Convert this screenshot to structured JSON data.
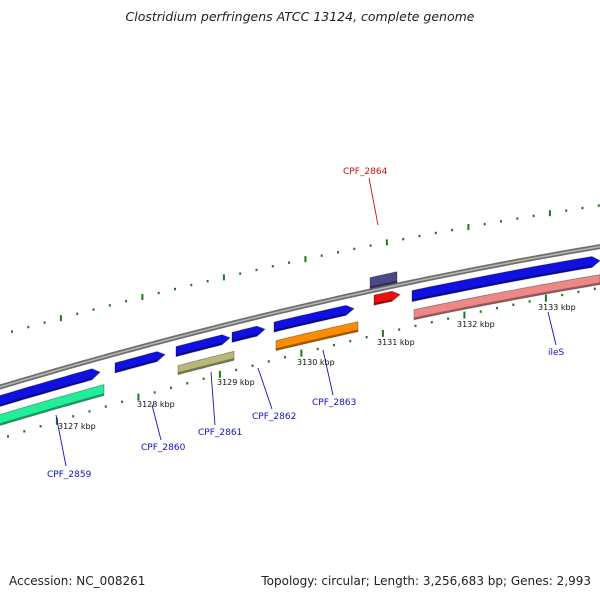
{
  "title": "Clostridium perfringens ATCC 13124, complete genome",
  "footer": {
    "accession_label": "Accession:",
    "accession": "NC_008261",
    "topology_text": "Topology: circular; Length: 3,256,683 bp; Genes: 2,993"
  },
  "colors": {
    "backbone": "#8a8a8a",
    "tick": "#1b7a1b",
    "label_blue": "#1010c8",
    "label_red": "#d01010",
    "cds_forward": "#1010e0",
    "cds_dark": "#4a4a8a",
    "cds_red": "#ee1010",
    "cds_green": "#22ee99",
    "cds_olive": "#b8b87a",
    "cds_orange": "#ff8c00",
    "cds_pink": "#ee8888"
  },
  "ticks": {
    "unit": "kbp",
    "labeled_positions_kbp": [
      3127,
      3128,
      3129,
      3130,
      3131,
      3132,
      3133
    ],
    "labels": [
      "3127 kbp",
      "3128 kbp",
      "3129 kbp",
      "3130 kbp",
      "3131 kbp",
      "3132 kbp",
      "3133 kbp"
    ]
  },
  "features": [
    {
      "name": "CPF_2859",
      "label": "CPF_2859",
      "strand": "+",
      "color": "cds_green",
      "start_kbp": 3126.45,
      "end_kbp": 3127.3
    },
    {
      "name": "CPF_2860",
      "label": "CPF_2860",
      "strand": "+",
      "color": "cds_forward",
      "start_kbp": 3127.55,
      "end_kbp": 3128.07
    },
    {
      "name": "CPF_2861",
      "label": "CPF_2861",
      "strand": "+",
      "color": "cds_forward",
      "start_kbp": 3128.2,
      "end_kbp": 3128.78
    },
    {
      "name": "CPF_2862",
      "label": "CPF_2862",
      "strand": "+",
      "color": "cds_forward",
      "start_kbp": 3128.85,
      "end_kbp": 3129.22
    },
    {
      "name": "CPF_2863",
      "label": "CPF_2863",
      "strand": "+",
      "color": "cds_forward",
      "start_kbp": 3129.32,
      "end_kbp": 3130.15
    },
    {
      "name": "CPF_2864",
      "label": "CPF_2864",
      "strand": "+",
      "color": "cds_red",
      "start_kbp": 3130.55,
      "end_kbp": 3130.88
    },
    {
      "name": "ileS",
      "label": "ileS",
      "strand": "+",
      "color": "cds_forward",
      "start_kbp": 3131.0,
      "end_kbp": 3133.8
    }
  ]
}
